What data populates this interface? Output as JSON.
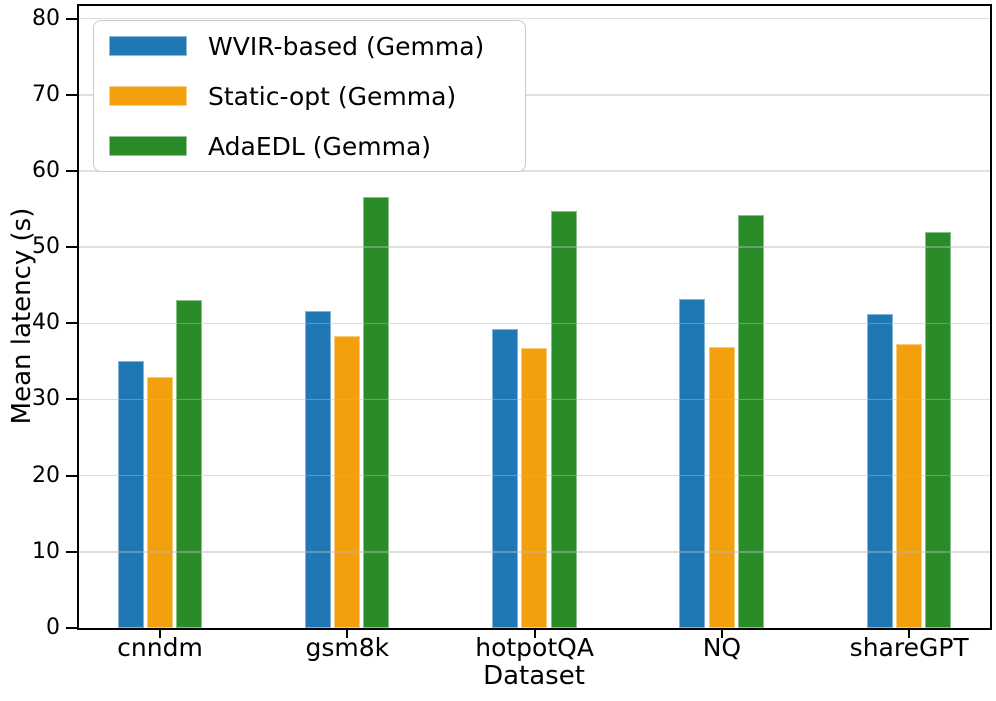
{
  "figure": {
    "background": "#ffffff",
    "spine_color": "#000000"
  },
  "chart_data": {
    "type": "bar",
    "title": "",
    "xlabel": "Dataset",
    "ylabel": "Mean latency (s)",
    "categories": [
      "cnndm",
      "gsm8k",
      "hotpotQA",
      "NQ",
      "shareGPT"
    ],
    "series": [
      {
        "name": "WVIR-based (Gemma)",
        "color": "#1f77b4",
        "values": [
          35.0,
          41.6,
          39.2,
          43.2,
          41.2
        ]
      },
      {
        "name": "Static-opt (Gemma)",
        "color": "#f3a00f",
        "values": [
          33.0,
          38.3,
          36.8,
          36.9,
          37.3
        ]
      },
      {
        "name": "AdaEDL (Gemma)",
        "color": "#2a8c28",
        "values": [
          43.1,
          56.6,
          54.7,
          54.2,
          52.0
        ]
      }
    ],
    "ylim": [
      0,
      81.7
    ],
    "yticks": [
      0,
      10,
      20,
      30,
      40,
      50,
      60,
      70,
      80
    ],
    "grid": true,
    "grid_color": "#b9b9b9",
    "legend_position": "upper left"
  }
}
